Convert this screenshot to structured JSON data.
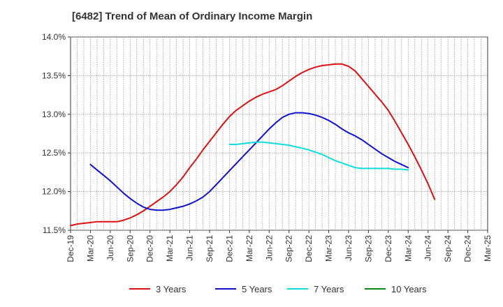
{
  "chart_data": {
    "type": "line",
    "title": "[6482]  Trend of Mean of Ordinary Income Margin",
    "xlabel": "",
    "ylabel": "",
    "ylim": [
      11.5,
      14.0
    ],
    "y_ticks": [
      11.5,
      12.0,
      12.5,
      13.0,
      13.5,
      14.0
    ],
    "y_tick_labels": [
      "11.5%",
      "12.0%",
      "12.5%",
      "13.0%",
      "13.5%",
      "14.0%"
    ],
    "x_tick_labels": [
      "Dec-19",
      "Mar-20",
      "Jun-20",
      "Sep-20",
      "Dec-20",
      "Mar-21",
      "Jun-21",
      "Sep-21",
      "Dec-21",
      "Mar-22",
      "Jun-22",
      "Sep-22",
      "Dec-22",
      "Mar-23",
      "Jun-23",
      "Sep-23",
      "Dec-23",
      "Mar-24",
      "Jun-24",
      "Sep-24",
      "Dec-24",
      "Mar-25"
    ],
    "grid": true,
    "legend_position": "bottom",
    "series": [
      {
        "name": "3 Years",
        "color": "#dd1111",
        "points": [
          [
            "Dec-19",
            11.56
          ],
          [
            "Jan-20",
            11.58
          ],
          [
            "Feb-20",
            11.59
          ],
          [
            "Mar-20",
            11.6
          ],
          [
            "Apr-20",
            11.61
          ],
          [
            "May-20",
            11.61
          ],
          [
            "Jun-20",
            11.61
          ],
          [
            "Jul-20",
            11.61
          ],
          [
            "Aug-20",
            11.63
          ],
          [
            "Sep-20",
            11.66
          ],
          [
            "Oct-20",
            11.7
          ],
          [
            "Nov-20",
            11.75
          ],
          [
            "Dec-20",
            11.81
          ],
          [
            "Jan-21",
            11.87
          ],
          [
            "Feb-21",
            11.93
          ],
          [
            "Mar-21",
            12.0
          ],
          [
            "Apr-21",
            12.09
          ],
          [
            "May-21",
            12.19
          ],
          [
            "Jun-21",
            12.31
          ],
          [
            "Jul-21",
            12.42
          ],
          [
            "Aug-21",
            12.54
          ],
          [
            "Sep-21",
            12.65
          ],
          [
            "Oct-21",
            12.76
          ],
          [
            "Nov-21",
            12.87
          ],
          [
            "Dec-21",
            12.97
          ],
          [
            "Jan-22",
            13.05
          ],
          [
            "Feb-22",
            13.11
          ],
          [
            "Mar-22",
            13.17
          ],
          [
            "Apr-22",
            13.22
          ],
          [
            "May-22",
            13.26
          ],
          [
            "Jun-22",
            13.29
          ],
          [
            "Jul-22",
            13.32
          ],
          [
            "Aug-22",
            13.37
          ],
          [
            "Sep-22",
            13.43
          ],
          [
            "Oct-22",
            13.49
          ],
          [
            "Nov-22",
            13.54
          ],
          [
            "Dec-22",
            13.58
          ],
          [
            "Jan-23",
            13.61
          ],
          [
            "Feb-23",
            13.63
          ],
          [
            "Mar-23",
            13.64
          ],
          [
            "Apr-23",
            13.65
          ],
          [
            "May-23",
            13.65
          ],
          [
            "Jun-23",
            13.62
          ],
          [
            "Jul-23",
            13.56
          ],
          [
            "Aug-23",
            13.46
          ],
          [
            "Sep-23",
            13.36
          ],
          [
            "Oct-23",
            13.26
          ],
          [
            "Nov-23",
            13.16
          ],
          [
            "Dec-23",
            13.05
          ],
          [
            "Jan-24",
            12.91
          ],
          [
            "Feb-24",
            12.76
          ],
          [
            "Mar-24",
            12.61
          ],
          [
            "Apr-24",
            12.45
          ],
          [
            "May-24",
            12.28
          ],
          [
            "Jun-24",
            12.1
          ],
          [
            "Jul-24",
            11.9
          ]
        ]
      },
      {
        "name": "5 Years",
        "color": "#1111cc",
        "points": [
          [
            "Mar-20",
            12.35
          ],
          [
            "Apr-20",
            12.28
          ],
          [
            "May-20",
            12.21
          ],
          [
            "Jun-20",
            12.14
          ],
          [
            "Jul-20",
            12.06
          ],
          [
            "Aug-20",
            11.98
          ],
          [
            "Sep-20",
            11.91
          ],
          [
            "Oct-20",
            11.85
          ],
          [
            "Nov-20",
            11.8
          ],
          [
            "Dec-20",
            11.77
          ],
          [
            "Jan-21",
            11.76
          ],
          [
            "Feb-21",
            11.76
          ],
          [
            "Mar-21",
            11.77
          ],
          [
            "Apr-21",
            11.79
          ],
          [
            "May-21",
            11.81
          ],
          [
            "Jun-21",
            11.84
          ],
          [
            "Jul-21",
            11.88
          ],
          [
            "Aug-21",
            11.93
          ],
          [
            "Sep-21",
            12.0
          ],
          [
            "Oct-21",
            12.09
          ],
          [
            "Nov-21",
            12.18
          ],
          [
            "Dec-21",
            12.27
          ],
          [
            "Jan-22",
            12.36
          ],
          [
            "Feb-22",
            12.45
          ],
          [
            "Mar-22",
            12.54
          ],
          [
            "Apr-22",
            12.63
          ],
          [
            "May-22",
            12.72
          ],
          [
            "Jun-22",
            12.81
          ],
          [
            "Jul-22",
            12.89
          ],
          [
            "Aug-22",
            12.96
          ],
          [
            "Sep-22",
            13.0
          ],
          [
            "Oct-22",
            13.02
          ],
          [
            "Nov-22",
            13.02
          ],
          [
            "Dec-22",
            13.01
          ],
          [
            "Jan-23",
            12.99
          ],
          [
            "Feb-23",
            12.96
          ],
          [
            "Mar-23",
            12.92
          ],
          [
            "Apr-23",
            12.87
          ],
          [
            "May-23",
            12.81
          ],
          [
            "Jun-23",
            12.76
          ],
          [
            "Jul-23",
            12.72
          ],
          [
            "Aug-23",
            12.67
          ],
          [
            "Sep-23",
            12.61
          ],
          [
            "Oct-23",
            12.55
          ],
          [
            "Nov-23",
            12.49
          ],
          [
            "Dec-23",
            12.44
          ],
          [
            "Jan-24",
            12.39
          ],
          [
            "Feb-24",
            12.35
          ],
          [
            "Mar-24",
            12.31
          ]
        ]
      },
      {
        "name": "7 Years",
        "color": "#11dddd",
        "points": [
          [
            "Dec-21",
            12.61
          ],
          [
            "Jan-22",
            12.61
          ],
          [
            "Feb-22",
            12.62
          ],
          [
            "Mar-22",
            12.63
          ],
          [
            "Apr-22",
            12.64
          ],
          [
            "May-22",
            12.64
          ],
          [
            "Jun-22",
            12.63
          ],
          [
            "Jul-22",
            12.62
          ],
          [
            "Aug-22",
            12.61
          ],
          [
            "Sep-22",
            12.6
          ],
          [
            "Oct-22",
            12.58
          ],
          [
            "Nov-22",
            12.56
          ],
          [
            "Dec-22",
            12.54
          ],
          [
            "Jan-23",
            12.51
          ],
          [
            "Feb-23",
            12.48
          ],
          [
            "Mar-23",
            12.44
          ],
          [
            "Apr-23",
            12.4
          ],
          [
            "May-23",
            12.37
          ],
          [
            "Jun-23",
            12.34
          ],
          [
            "Jul-23",
            12.31
          ],
          [
            "Aug-23",
            12.3
          ],
          [
            "Sep-23",
            12.3
          ],
          [
            "Oct-23",
            12.3
          ],
          [
            "Nov-23",
            12.3
          ],
          [
            "Dec-23",
            12.3
          ],
          [
            "Jan-24",
            12.29
          ],
          [
            "Feb-24",
            12.29
          ],
          [
            "Mar-24",
            12.28
          ]
        ]
      },
      {
        "name": "10 Years",
        "color": "#118811",
        "points": []
      }
    ]
  }
}
